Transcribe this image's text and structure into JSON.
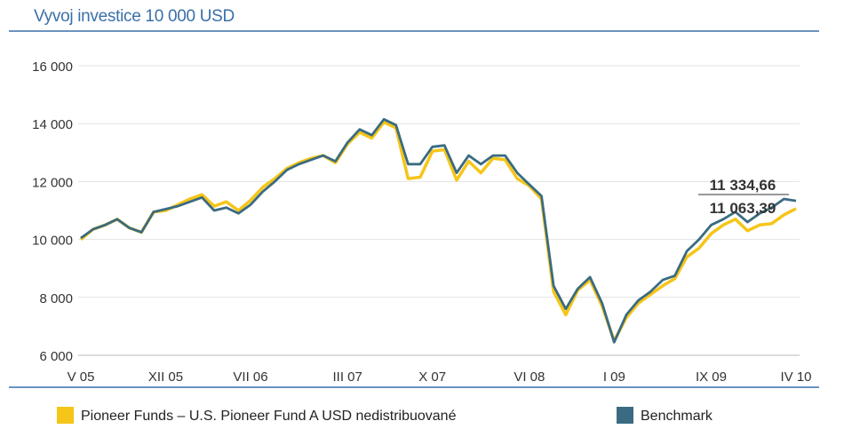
{
  "chart_data": {
    "type": "line",
    "title": "Vyvoj investice 10 000 USD",
    "xlabel": "",
    "ylabel": "",
    "ylim": [
      6000,
      16000
    ],
    "yticks": [
      6000,
      8000,
      10000,
      12000,
      14000,
      16000
    ],
    "ytick_labels": [
      "6 000",
      "8 000",
      "10 000",
      "12 000",
      "14 000",
      "16 000"
    ],
    "x_range": [
      0,
      59
    ],
    "xtick_labels": [
      {
        "x": 0,
        "label": "V 05"
      },
      {
        "x": 7,
        "label": "XII 05"
      },
      {
        "x": 14,
        "label": "VII 06"
      },
      {
        "x": 22,
        "label": "III 07"
      },
      {
        "x": 29,
        "label": "X 07"
      },
      {
        "x": 37,
        "label": "VI 08"
      },
      {
        "x": 44,
        "label": "I 09"
      },
      {
        "x": 52,
        "label": "IX 09"
      },
      {
        "x": 59,
        "label": "IV 10"
      }
    ],
    "grid": true,
    "legend_position": "bottom",
    "series": [
      {
        "name": "Pioneer Funds – U.S. Pioneer Fund A USD nedistribuované",
        "color": "#f5c518",
        "x": [
          0,
          1,
          2,
          3,
          4,
          5,
          6,
          7,
          8,
          9,
          10,
          11,
          12,
          13,
          14,
          15,
          16,
          17,
          18,
          19,
          20,
          21,
          22,
          23,
          24,
          25,
          26,
          27,
          28,
          29,
          30,
          31,
          32,
          33,
          34,
          35,
          36,
          37,
          38,
          39,
          40,
          41,
          42,
          43,
          44,
          45,
          46,
          47,
          48,
          49,
          50,
          51,
          52,
          53,
          54,
          55,
          56,
          57,
          58,
          59
        ],
        "values": [
          10000,
          10350,
          10500,
          10700,
          10400,
          10250,
          10950,
          11000,
          11200,
          11400,
          11550,
          11150,
          11300,
          11000,
          11350,
          11800,
          12100,
          12450,
          12650,
          12800,
          12900,
          12650,
          13300,
          13700,
          13500,
          14050,
          13850,
          12100,
          12150,
          13050,
          13100,
          12050,
          12700,
          12300,
          12800,
          12750,
          12100,
          11850,
          11400,
          8200,
          7400,
          8250,
          8600,
          7700,
          6500,
          7300,
          7800,
          8100,
          8400,
          8650,
          9400,
          9700,
          10200,
          10500,
          10700,
          10300,
          10500,
          10550,
          10850,
          11063.39
        ]
      },
      {
        "name": "Benchmark",
        "color": "#3a6b82",
        "x": [
          0,
          1,
          2,
          3,
          4,
          5,
          6,
          7,
          8,
          9,
          10,
          11,
          12,
          13,
          14,
          15,
          16,
          17,
          18,
          19,
          20,
          21,
          22,
          23,
          24,
          25,
          26,
          27,
          28,
          29,
          30,
          31,
          32,
          33,
          34,
          35,
          36,
          37,
          38,
          39,
          40,
          41,
          42,
          43,
          44,
          45,
          46,
          47,
          48,
          49,
          50,
          51,
          52,
          53,
          54,
          55,
          56,
          57,
          58,
          59
        ],
        "values": [
          10050,
          10350,
          10500,
          10700,
          10400,
          10250,
          10950,
          11050,
          11150,
          11300,
          11450,
          11000,
          11100,
          10900,
          11200,
          11650,
          12000,
          12400,
          12600,
          12750,
          12900,
          12700,
          13350,
          13800,
          13600,
          14150,
          13950,
          12600,
          12600,
          13200,
          13250,
          12300,
          12900,
          12600,
          12900,
          12900,
          12300,
          11900,
          11500,
          8400,
          7600,
          8300,
          8700,
          7800,
          6450,
          7400,
          7900,
          8200,
          8600,
          8750,
          9600,
          10000,
          10500,
          10700,
          10950,
          10600,
          10900,
          11100,
          11400,
          11334.66
        ]
      }
    ],
    "annotations": [
      {
        "label": "11 334,66",
        "value": 11334.66
      },
      {
        "label": "11 063,39",
        "value": 11063.39
      }
    ]
  }
}
